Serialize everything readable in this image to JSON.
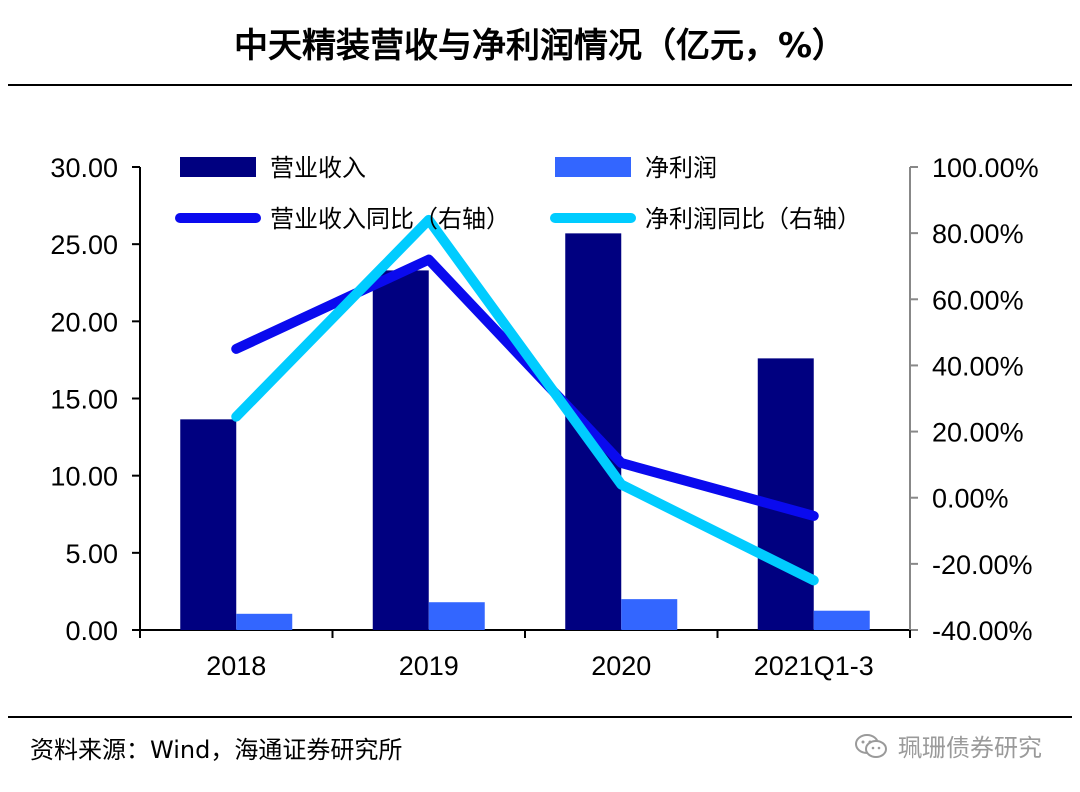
{
  "title": "中天精装营收与净利润情况（亿元，%）",
  "source": "资料来源：Wind，海通证券研究所",
  "watermark": "珮珊债券研究",
  "chart_data": {
    "type": "bar",
    "categories": [
      "2018",
      "2019",
      "2020",
      "2021Q1-3"
    ],
    "series": [
      {
        "name": "营业收入",
        "kind": "bar",
        "axis": "left",
        "color": "#000080",
        "values": [
          13.65,
          23.3,
          25.7,
          17.6
        ]
      },
      {
        "name": "净利润",
        "kind": "bar",
        "axis": "left",
        "color": "#3366ff",
        "values": [
          1.05,
          1.8,
          2.0,
          1.25
        ]
      },
      {
        "name": "营业收入同比（右轴）",
        "kind": "line",
        "axis": "right",
        "color": "#0a0aee",
        "values": [
          45.0,
          72.0,
          10.5,
          -5.5
        ]
      },
      {
        "name": "净利润同比（右轴）",
        "kind": "line",
        "axis": "right",
        "color": "#00ccff",
        "values": [
          24.5,
          84.0,
          4.0,
          -25.0
        ]
      }
    ],
    "y_left": {
      "min": 0,
      "max": 30,
      "step": 5,
      "ticks": [
        "0.00",
        "5.00",
        "10.00",
        "15.00",
        "20.00",
        "25.00",
        "30.00"
      ]
    },
    "y_right": {
      "min": -40,
      "max": 100,
      "step": 20,
      "ticks": [
        "-40.00%",
        "-20.00%",
        "0.00%",
        "20.00%",
        "40.00%",
        "60.00%",
        "80.00%",
        "100.00%"
      ]
    },
    "legend_position": "top",
    "grid": false
  }
}
